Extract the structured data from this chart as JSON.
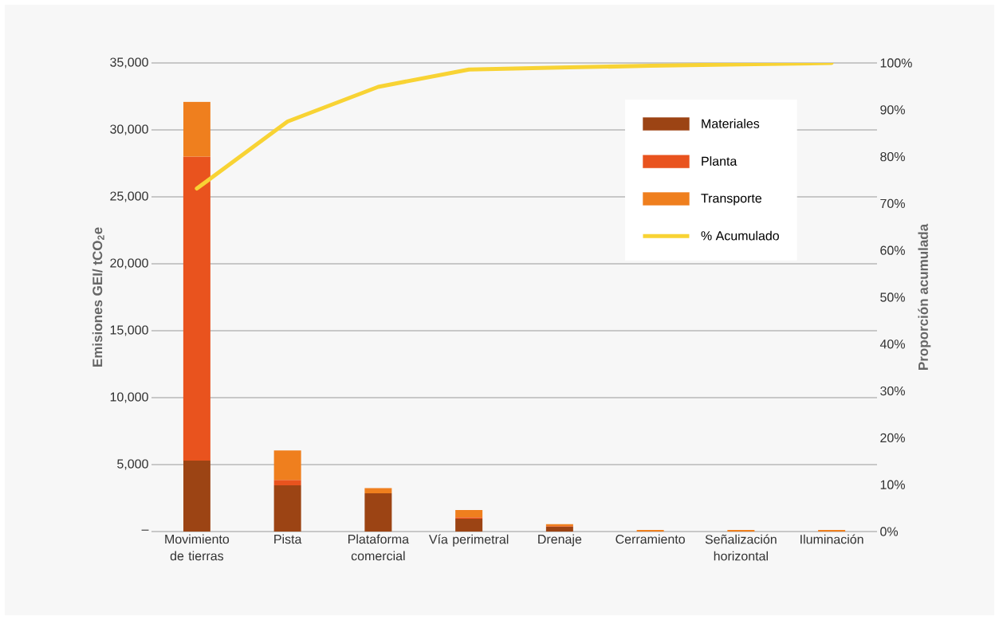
{
  "chart_data": {
    "type": "bar",
    "stacked": true,
    "categories": [
      "Movimiento de tierras",
      "Pista",
      "Plataforma comercial",
      "Vía perimetral",
      "Drenaje",
      "Cerramiento",
      "Señalización horizontal",
      "Iluminación"
    ],
    "series": [
      {
        "name": "Materiales",
        "color": "#9c4414",
        "values": [
          5300,
          3450,
          2850,
          950,
          350,
          0,
          0,
          0
        ]
      },
      {
        "name": "Planta",
        "color": "#e9531e",
        "values": [
          22700,
          400,
          0,
          100,
          50,
          0,
          0,
          0
        ]
      },
      {
        "name": "Transporte",
        "color": "#ef7f1e",
        "values": [
          4100,
          2200,
          400,
          550,
          150,
          120,
          120,
          120
        ]
      },
      {
        "name": "% Acumulado",
        "type": "line",
        "axis": "y2",
        "color": "#f8d334",
        "values": [
          73.2,
          87.5,
          94.9,
          98.6,
          99.0,
          99.4,
          99.7,
          100
        ]
      }
    ],
    "ylabel": "Emisiones GEI/ tCO$_{2}$e",
    "y2label": "Proporción acumulada",
    "ylim": [
      0,
      35000
    ],
    "yticks": [
      {
        "value": 0,
        "label": "–"
      },
      {
        "value": 5000,
        "label": "5,000"
      },
      {
        "value": 10000,
        "label": "10,000"
      },
      {
        "value": 15000,
        "label": "15,000"
      },
      {
        "value": 20000,
        "label": "20,000"
      },
      {
        "value": 25000,
        "label": "25,000"
      },
      {
        "value": 30000,
        "label": "30,000"
      },
      {
        "value": 35000,
        "label": "35,000"
      }
    ],
    "y2lim": [
      0,
      100
    ],
    "y2ticks": [
      {
        "value": 0,
        "label": "0%"
      },
      {
        "value": 10,
        "label": "10%"
      },
      {
        "value": 20,
        "label": "20%"
      },
      {
        "value": 30,
        "label": "30%"
      },
      {
        "value": 40,
        "label": "40%"
      },
      {
        "value": 50,
        "label": "50%"
      },
      {
        "value": 60,
        "label": "60%"
      },
      {
        "value": 70,
        "label": "70%"
      },
      {
        "value": 80,
        "label": "80%"
      },
      {
        "value": 90,
        "label": "90%"
      },
      {
        "value": 100,
        "label": "100%"
      }
    ],
    "grid": "y",
    "legend": "top right"
  }
}
